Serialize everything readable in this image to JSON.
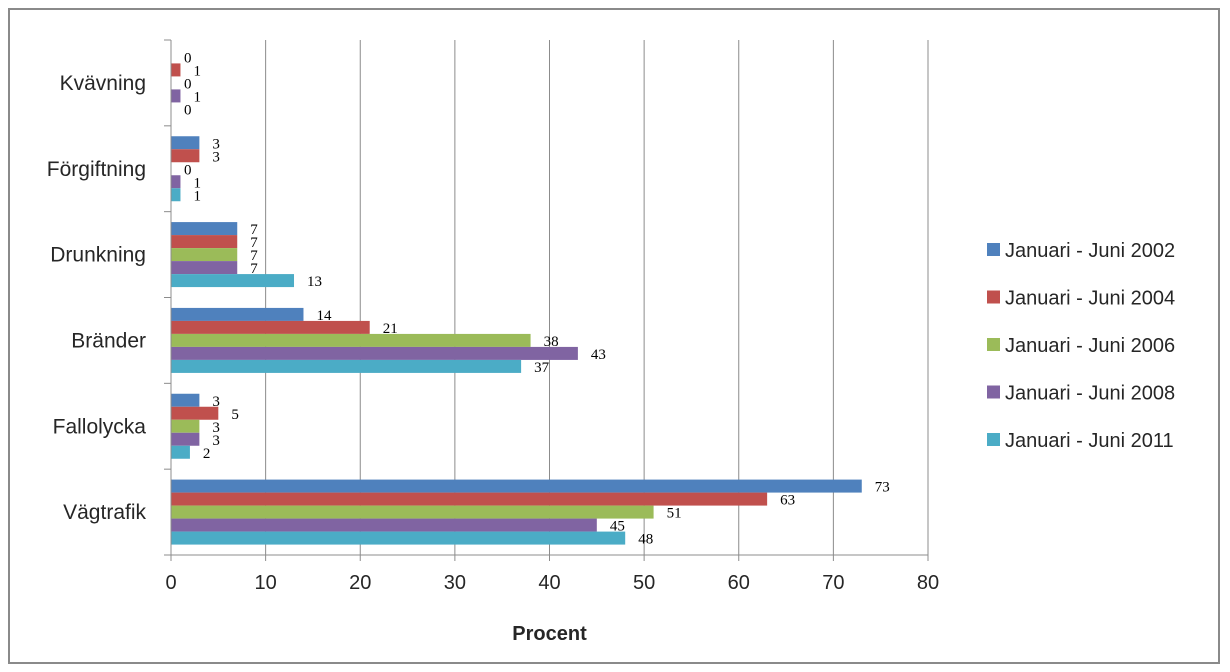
{
  "chart_data": {
    "type": "bar",
    "orientation": "horizontal",
    "categories": [
      "Vägtrafik",
      "Fallolycka",
      "Bränder",
      "Drunkning",
      "Förgiftning",
      "Kvävning"
    ],
    "series": [
      {
        "name": "Januari - Juni 2002",
        "color": "#4f81bd",
        "values": [
          73,
          3,
          14,
          7,
          3,
          0
        ]
      },
      {
        "name": "Januari - Juni 2004",
        "color": "#c0504d",
        "values": [
          63,
          5,
          21,
          7,
          3,
          1
        ]
      },
      {
        "name": "Januari - Juni 2006",
        "color": "#9bbb59",
        "values": [
          51,
          3,
          38,
          7,
          0,
          0
        ]
      },
      {
        "name": "Januari - Juni 2008",
        "color": "#8064a2",
        "values": [
          45,
          3,
          43,
          7,
          1,
          1
        ]
      },
      {
        "name": "Januari - Juni 2011",
        "color": "#4bacc6",
        "values": [
          48,
          2,
          37,
          13,
          1,
          0
        ]
      }
    ],
    "xlabel": "Procent",
    "ylabel": "",
    "xlim": [
      0,
      80
    ],
    "x_ticks": [
      "0",
      "10",
      "20",
      "30",
      "40",
      "50",
      "60",
      "70",
      "80"
    ],
    "grid": "vertical",
    "legend_position": "right",
    "data_labels": true
  }
}
